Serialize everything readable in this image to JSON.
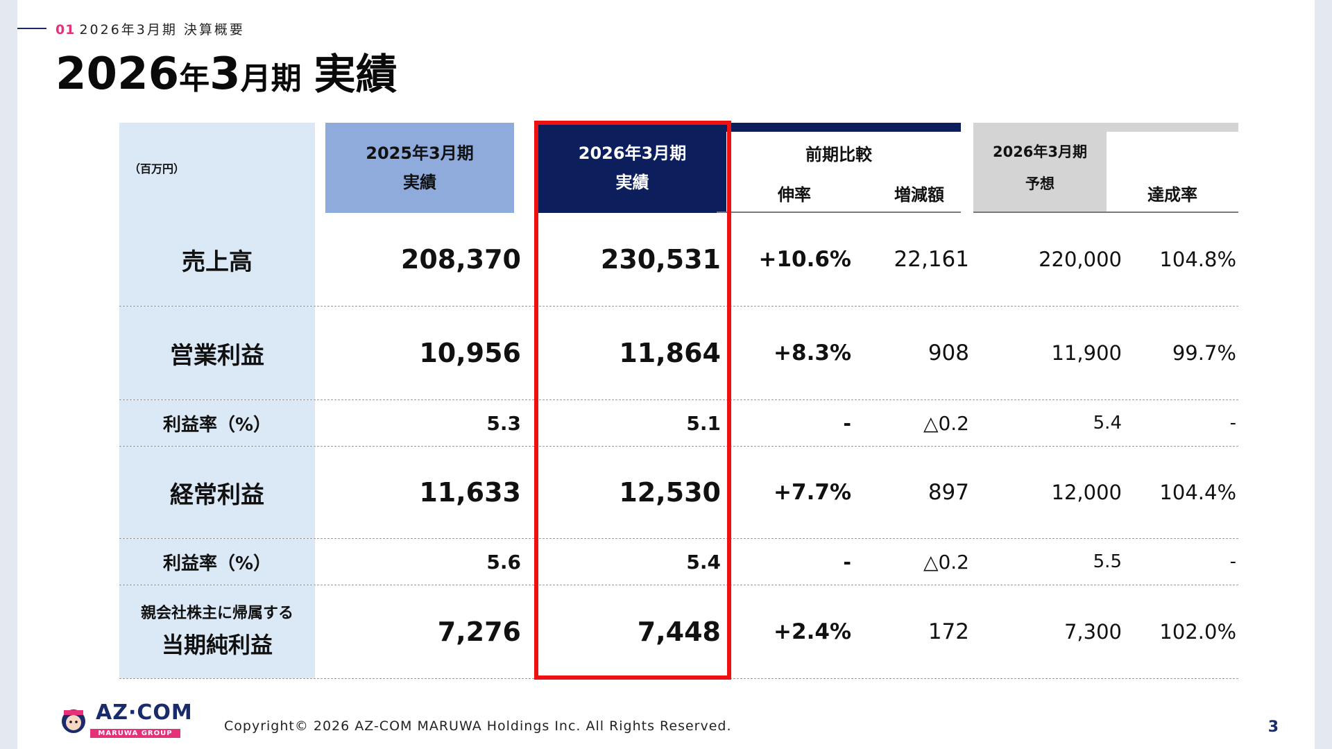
{
  "header": {
    "section_number": "01",
    "section_title": "2026年3月期 決算概要",
    "title_year": "2026",
    "title_nen": "年",
    "title_month": "3",
    "title_ki": "月期",
    "title_word": "実績"
  },
  "table": {
    "unit_label": "（百万円）",
    "col_prev_line1": "2025年3月期",
    "col_prev_line2": "実績",
    "col_curr_line1": "2026年3月期",
    "col_curr_line2": "実績",
    "col_compare_group": "前期比較",
    "col_growth": "伸率",
    "col_change": "増減額",
    "col_forecast_line1": "2026年3月期",
    "col_forecast_line2": "予想",
    "col_achievement": "達成率",
    "rows": [
      {
        "label": "売上高",
        "prev": "208,370",
        "curr": "230,531",
        "growth": "+10.6%",
        "change": "22,161",
        "forecast": "220,000",
        "achievement": "104.8%"
      },
      {
        "label": "営業利益",
        "prev": "10,956",
        "curr": "11,864",
        "growth": "+8.3%",
        "change": "908",
        "forecast": "11,900",
        "achievement": "99.7%"
      },
      {
        "label": "利益率（%）",
        "prev": "5.3",
        "curr": "5.1",
        "growth": "-",
        "change": "△0.2",
        "forecast": "5.4",
        "achievement": "-"
      },
      {
        "label": "経常利益",
        "prev": "11,633",
        "curr": "12,530",
        "growth": "+7.7%",
        "change": "897",
        "forecast": "12,000",
        "achievement": "104.4%"
      },
      {
        "label": "利益率（%）",
        "prev": "5.6",
        "curr": "5.4",
        "growth": "-",
        "change": "△0.2",
        "forecast": "5.5",
        "achievement": "-"
      },
      {
        "label_line1": "親会社株主に帰属する",
        "label_line2": "当期純利益",
        "prev": "7,276",
        "curr": "7,448",
        "growth": "+2.4%",
        "change": "172",
        "forecast": "7,300",
        "achievement": "102.0%"
      }
    ]
  },
  "footer": {
    "copyright": "Copyright© 2026 AZ-COM MARUWA Holdings Inc. All Rights Reserved.",
    "page_number": "3",
    "logo_text": "AZ·COM",
    "logo_sub": "MARUWA GROUP"
  },
  "colors": {
    "accent_pink": "#e5307a",
    "navy": "#0c1f5c",
    "light_blue_header": "#8eabdc",
    "row_label_bg": "#dbe8f5",
    "forecast_header_bg": "#d4d4d4",
    "highlight_red": "#ee1111"
  }
}
